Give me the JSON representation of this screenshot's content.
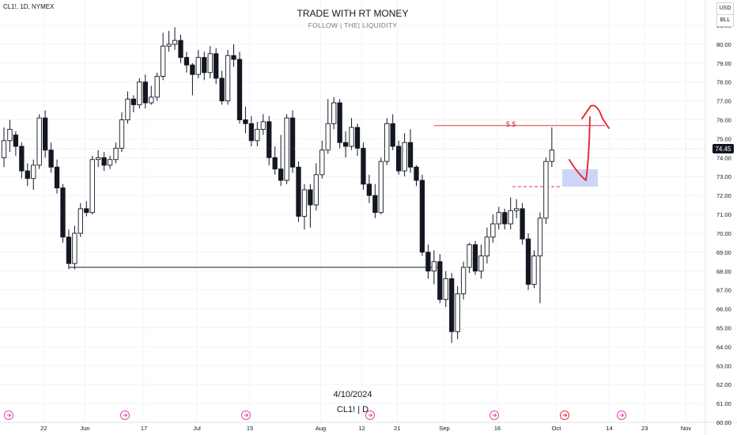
{
  "symbol_header": "CL1!, 1D, NYMEX",
  "title": "TRADE WITH RT MONEY",
  "subtitle": "FOLLOW  |  THE|  LIQUIDITY",
  "footer": {
    "date": "4/10/2024",
    "symbol": "CL1! | D"
  },
  "price_buttons": {
    "currency": "USD",
    "unit": "BLL"
  },
  "annotations": {
    "liquidity_label": "$ $"
  },
  "colors": {
    "annotation_red": "#e5303f",
    "zone_blue": "#bcc8f5",
    "ref_line": "#131722",
    "current_price_bg": "#131722"
  },
  "chart_data": {
    "type": "candlestick",
    "ylim": [
      60,
      81.5
    ],
    "y_ticks": [
      "81.00",
      "80.00",
      "79.00",
      "78.00",
      "77.00",
      "76.00",
      "75.00",
      "74.00",
      "73.00",
      "72.00",
      "71.00",
      "70.00",
      "69.00",
      "68.00",
      "67.00",
      "66.00",
      "65.00",
      "64.00",
      "63.00",
      "62.00",
      "61.00",
      "60.00"
    ],
    "x_tick_labels": [
      {
        "label": "22",
        "index": 3
      },
      {
        "label": "Jun",
        "index": 10
      },
      {
        "label": "17",
        "index": 20
      },
      {
        "label": "Jul",
        "index": 29
      },
      {
        "label": "15",
        "index": 38
      },
      {
        "label": "Aug",
        "index": 50
      },
      {
        "label": "12",
        "index": 57
      },
      {
        "label": "21",
        "index": 63
      },
      {
        "label": "Sep",
        "index": 71
      },
      {
        "label": "16",
        "index": 80
      },
      {
        "label": "Oct",
        "index": 90
      },
      {
        "label": "14",
        "index": 99
      },
      {
        "label": "23",
        "index": 105
      },
      {
        "label": "Nov",
        "index": 112
      }
    ],
    "current_price": "74.45",
    "candles": [
      [
        74.0,
        74.9,
        75.6,
        73.5
      ],
      [
        74.9,
        75.5,
        76.0,
        74.3
      ],
      [
        75.2,
        74.6,
        75.4,
        74.1
      ],
      [
        74.6,
        73.3,
        74.8,
        72.9
      ],
      [
        73.3,
        72.9,
        73.7,
        72.5
      ],
      [
        72.9,
        73.6,
        73.9,
        72.3
      ],
      [
        73.6,
        76.1,
        76.3,
        73.4
      ],
      [
        76.1,
        74.4,
        76.5,
        74.0
      ],
      [
        74.4,
        73.5,
        74.8,
        73.2
      ],
      [
        73.5,
        72.4,
        73.9,
        72.1
      ],
      [
        72.4,
        69.8,
        72.6,
        69.5
      ],
      [
        69.8,
        68.4,
        70.2,
        68.1
      ],
      [
        68.4,
        70.0,
        70.4,
        68.1
      ],
      [
        70.0,
        71.3,
        71.6,
        69.8
      ],
      [
        71.3,
        71.1,
        71.7,
        70.9
      ],
      [
        71.1,
        73.9,
        74.1,
        71.0
      ],
      [
        73.9,
        74.0,
        74.4,
        73.5
      ],
      [
        74.0,
        73.6,
        74.3,
        73.3
      ],
      [
        73.6,
        73.9,
        74.1,
        73.4
      ],
      [
        73.9,
        74.5,
        74.8,
        73.7
      ],
      [
        74.5,
        76.0,
        76.4,
        74.3
      ],
      [
        76.0,
        77.1,
        77.5,
        75.8
      ],
      [
        77.1,
        76.8,
        77.3,
        76.4
      ],
      [
        76.8,
        78.0,
        78.2,
        76.6
      ],
      [
        78.0,
        76.9,
        78.4,
        76.6
      ],
      [
        76.9,
        77.2,
        77.8,
        76.8
      ],
      [
        77.2,
        78.3,
        78.5,
        77.0
      ],
      [
        78.3,
        79.9,
        80.6,
        78.1
      ],
      [
        79.9,
        80.0,
        80.7,
        79.6
      ],
      [
        80.0,
        80.2,
        80.9,
        79.7
      ],
      [
        80.2,
        79.3,
        80.5,
        79.0
      ],
      [
        79.3,
        78.9,
        79.6,
        78.5
      ],
      [
        78.9,
        78.4,
        79.0,
        77.3
      ],
      [
        78.4,
        79.3,
        79.7,
        78.2
      ],
      [
        79.3,
        78.5,
        79.6,
        78.1
      ],
      [
        78.5,
        79.5,
        79.9,
        78.2
      ],
      [
        79.5,
        78.2,
        79.8,
        77.9
      ],
      [
        78.2,
        77.0,
        78.6,
        76.8
      ],
      [
        77.0,
        79.4,
        79.7,
        76.8
      ],
      [
        79.4,
        79.2,
        80.0,
        78.8
      ],
      [
        79.2,
        76.0,
        79.6,
        75.8
      ],
      [
        76.0,
        75.8,
        76.7,
        75.3
      ],
      [
        75.8,
        74.9,
        76.2,
        74.6
      ],
      [
        74.9,
        75.5,
        75.9,
        74.6
      ],
      [
        75.5,
        75.9,
        76.3,
        75.2
      ],
      [
        75.9,
        74.0,
        76.2,
        73.6
      ],
      [
        74.0,
        73.4,
        74.6,
        73.1
      ],
      [
        73.4,
        72.8,
        75.2,
        72.5
      ],
      [
        72.8,
        76.1,
        76.3,
        72.6
      ],
      [
        76.1,
        73.5,
        76.5,
        73.2
      ],
      [
        73.5,
        70.9,
        73.8,
        70.6
      ],
      [
        70.9,
        72.3,
        72.6,
        70.2
      ],
      [
        72.3,
        71.5,
        72.6,
        70.3
      ],
      [
        71.5,
        73.1,
        73.7,
        71.2
      ],
      [
        73.1,
        74.4,
        74.9,
        72.9
      ],
      [
        74.4,
        75.8,
        77.1,
        74.2
      ],
      [
        75.8,
        76.9,
        77.2,
        75.5
      ],
      [
        76.9,
        74.8,
        77.1,
        74.5
      ],
      [
        74.8,
        74.6,
        75.4,
        74.0
      ],
      [
        74.6,
        75.6,
        76.1,
        74.4
      ],
      [
        75.6,
        74.5,
        75.8,
        74.1
      ],
      [
        74.5,
        72.6,
        74.8,
        72.3
      ],
      [
        72.6,
        72.0,
        73.1,
        71.6
      ],
      [
        72.0,
        71.1,
        72.6,
        70.8
      ],
      [
        71.1,
        73.8,
        74.0,
        71.0
      ],
      [
        73.8,
        75.8,
        76.1,
        73.6
      ],
      [
        75.8,
        74.6,
        76.3,
        74.4
      ],
      [
        74.6,
        73.3,
        74.9,
        73.1
      ],
      [
        73.3,
        74.8,
        75.3,
        73.0
      ],
      [
        74.8,
        73.5,
        75.5,
        73.2
      ],
      [
        73.5,
        72.8,
        73.6,
        72.5
      ],
      [
        72.8,
        69.0,
        73.1,
        68.8
      ],
      [
        69.0,
        68.0,
        69.4,
        67.6
      ],
      [
        68.0,
        68.5,
        69.1,
        67.3
      ],
      [
        68.5,
        66.5,
        68.9,
        66.3
      ],
      [
        66.5,
        67.6,
        68.0,
        66.1
      ],
      [
        67.6,
        64.8,
        67.9,
        64.2
      ],
      [
        64.8,
        66.8,
        67.2,
        64.4
      ],
      [
        66.8,
        68.2,
        68.5,
        66.5
      ],
      [
        68.2,
        69.4,
        69.5,
        67.9
      ],
      [
        69.4,
        68.0,
        69.6,
        67.8
      ],
      [
        68.0,
        68.8,
        69.4,
        67.6
      ],
      [
        68.8,
        69.8,
        70.3,
        68.4
      ],
      [
        69.8,
        70.5,
        71.0,
        69.5
      ],
      [
        70.5,
        71.1,
        71.4,
        70.2
      ],
      [
        71.1,
        70.5,
        71.3,
        70.2
      ],
      [
        70.5,
        71.2,
        71.9,
        70.2
      ],
      [
        71.2,
        71.3,
        71.8,
        70.8
      ],
      [
        71.3,
        69.7,
        71.6,
        69.4
      ],
      [
        69.7,
        67.3,
        70.0,
        67.0
      ],
      [
        67.3,
        68.8,
        69.1,
        67.1
      ],
      [
        68.8,
        70.8,
        71.1,
        66.3
      ],
      [
        70.8,
        73.8,
        74.0,
        70.5
      ],
      [
        73.8,
        74.4,
        75.6,
        73.5
      ]
    ],
    "ref_lines": [
      {
        "name": "low-line",
        "y": 68.2,
        "from_index": 11,
        "to_index": 74
      },
      {
        "name": "liquidity-line",
        "y": 75.7,
        "from_index": 73,
        "to_index": 102
      }
    ]
  }
}
